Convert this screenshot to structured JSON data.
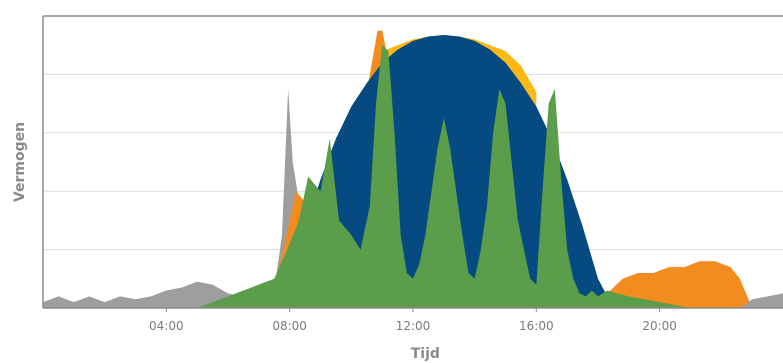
{
  "chart_data": {
    "type": "area",
    "xlabel": "Tijd",
    "ylabel": "Vermogen",
    "x_unit": "hour",
    "xlim": [
      0,
      24
    ],
    "ylim": [
      0,
      100
    ],
    "x_ticks": [
      4,
      8,
      12,
      16,
      20
    ],
    "x_tick_labels": [
      "04:00",
      "08:00",
      "12:00",
      "16:00",
      "20:00"
    ],
    "y_gridlines": [
      20,
      40,
      60,
      80,
      100
    ],
    "grid": "horizontal",
    "legend": "none",
    "series": [
      {
        "color": "#9e9e9e",
        "x": [
          0,
          0.5,
          1,
          1.5,
          2,
          2.5,
          3,
          3.5,
          4,
          4.5,
          5,
          5.5,
          6,
          6.5,
          7,
          7.5,
          7.75,
          7.95,
          8.1,
          8.4,
          8.8,
          9.2,
          9.5
        ],
        "y": [
          2,
          4,
          2,
          4,
          2,
          4,
          3,
          4,
          6,
          7,
          9,
          8,
          5,
          4,
          4,
          6,
          25,
          75,
          50,
          30,
          15,
          6,
          0
        ]
      },
      {
        "color": "#f28c1e",
        "x": [
          7.5,
          7.8,
          8.2,
          8.6,
          9.0,
          9.4,
          9.8,
          10.2,
          10.6,
          10.85,
          11.0,
          11.2,
          11.4,
          11.6
        ],
        "y": [
          8,
          20,
          40,
          35,
          25,
          30,
          45,
          60,
          80,
          95,
          95,
          85,
          75,
          60
        ]
      },
      {
        "color": "#f28c1e",
        "x": [
          18,
          18.3,
          18.8,
          19.3,
          19.8,
          20.3,
          20.8,
          21.3,
          21.8,
          22.3,
          22.6,
          23
        ],
        "y": [
          0,
          5,
          10,
          12,
          12,
          14,
          14,
          16,
          16,
          14,
          10,
          0
        ]
      },
      {
        "color": "#fdb913",
        "x": [
          11,
          11.5,
          12,
          12.5,
          13,
          13.5,
          14,
          14.5,
          15,
          15.5,
          16
        ],
        "y": [
          88,
          90,
          92,
          93,
          93.5,
          93,
          92,
          90,
          88,
          83,
          74
        ]
      },
      {
        "color": "#054a80",
        "x": [
          7.5,
          8,
          8.5,
          9,
          9.5,
          10,
          10.5,
          11,
          11.5,
          12,
          12.5,
          13,
          13.5,
          14,
          14.5,
          15,
          15.5,
          16,
          16.5,
          17,
          17.5,
          18,
          18.5,
          19
        ],
        "y": [
          0,
          10,
          28,
          44,
          58,
          69,
          77,
          84,
          88.5,
          91.5,
          93,
          93.5,
          93,
          91.5,
          88.5,
          84,
          77,
          69,
          58,
          44,
          28,
          10,
          0,
          0
        ]
      },
      {
        "color": "#5a9d4a",
        "x": [
          5,
          5.5,
          6,
          6.5,
          7,
          7.5,
          8,
          8.3,
          8.6,
          9.0,
          9.3,
          9.6,
          10.0,
          10.3,
          10.6,
          10.8,
          11.0,
          11.2,
          11.4,
          11.6,
          11.8,
          12.0,
          12.2,
          12.4,
          12.6,
          12.8,
          13.0,
          13.2,
          13.4,
          13.6,
          13.8,
          14.0,
          14.2,
          14.4,
          14.6,
          14.8,
          15.0,
          15.2,
          15.4,
          15.6,
          15.8,
          16.0,
          16.2,
          16.4,
          16.6,
          16.8,
          17.0,
          17.2,
          17.4,
          17.6,
          17.8,
          18.0,
          18.3,
          18.6,
          19.0,
          19.5,
          20.0,
          20.5,
          21.0
        ],
        "y": [
          0,
          2,
          4,
          6,
          8,
          10,
          22,
          30,
          45,
          40,
          58,
          30,
          25,
          20,
          35,
          70,
          90,
          88,
          60,
          25,
          12,
          10,
          15,
          25,
          40,
          55,
          65,
          55,
          40,
          25,
          12,
          10,
          20,
          35,
          60,
          75,
          70,
          50,
          30,
          20,
          10,
          8,
          40,
          70,
          75,
          45,
          20,
          10,
          5,
          4,
          6,
          4,
          6,
          5,
          4,
          3,
          2,
          1,
          0
        ]
      },
      {
        "color": "#9e9e9e",
        "x": [
          22.6,
          23,
          23.5,
          24
        ],
        "y": [
          0,
          3,
          4,
          5
        ]
      }
    ]
  }
}
